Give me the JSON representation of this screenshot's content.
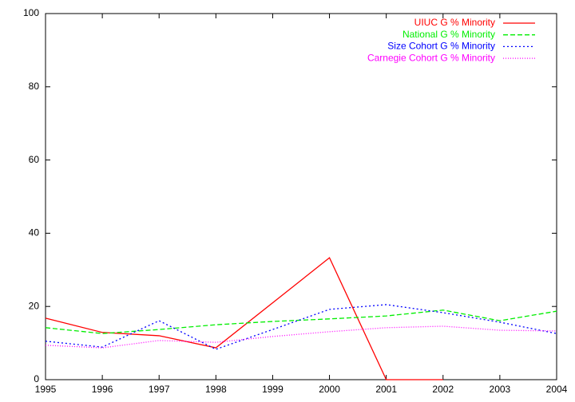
{
  "chart_data": {
    "type": "line",
    "x": [
      1995,
      1996,
      1997,
      1998,
      1999,
      2000,
      2001,
      2002,
      2003,
      2004
    ],
    "xlim": [
      1995,
      2004
    ],
    "xticks": [
      1995,
      1996,
      1997,
      1998,
      1999,
      2000,
      2001,
      2002,
      2003,
      2004
    ],
    "ylim": [
      0,
      100
    ],
    "yticks": [
      0,
      20,
      40,
      60,
      80,
      100
    ],
    "grid": false,
    "legend": "top-right",
    "series": [
      {
        "name": "UIUC G % Minority",
        "color": "#ff0000",
        "dash": "solid",
        "values": [
          16.8,
          12.9,
          12.0,
          8.7,
          21.0,
          33.3,
          0,
          0,
          null,
          null
        ]
      },
      {
        "name": "National G % Minority",
        "color": "#00ee00",
        "dash": "dashed",
        "values": [
          14.2,
          12.6,
          13.7,
          15.0,
          15.9,
          16.6,
          17.4,
          19.0,
          16.1,
          18.7
        ]
      },
      {
        "name": "Size Cohort G % Minority",
        "color": "#0000ff",
        "dash": "dotted",
        "values": [
          10.5,
          8.9,
          16.1,
          8.3,
          13.7,
          19.2,
          20.5,
          18.3,
          15.7,
          12.6
        ]
      },
      {
        "name": "Carnegie Cohort G % Minority",
        "color": "#ff00ff",
        "dash": "fine-dotted",
        "values": [
          9.4,
          8.7,
          10.7,
          10.2,
          11.8,
          13.1,
          14.2,
          14.6,
          13.5,
          13.3
        ]
      }
    ]
  }
}
